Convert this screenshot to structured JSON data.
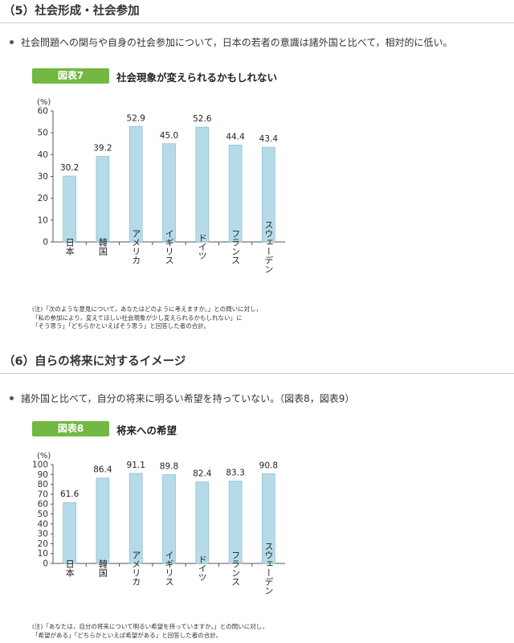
{
  "section5": {
    "heading": "（5）社会形成・社会参加",
    "bullet": "社会問題への関与や自身の社会参加について，日本の若者の意識は諸外国と比べて，相対的に低い。",
    "figure_label": "図表7",
    "figure_title": "社会現象が変えられるかもしれない",
    "note_lines": [
      "(注)「次のような意見について，あなたはどのように考えますか。」との問いに対し，",
      "「私の参加により，変えてほしい社会現象が少し変えられるかもしれない」に",
      "「そう思う」「どちらかといえばそう思う」と回答した者の合計。"
    ]
  },
  "section6": {
    "heading": "（6）自らの将来に対するイメージ",
    "bullet": "諸外国と比べて，自分の将来に明るい希望を持っていない。（図表8，図表9）",
    "figure_label": "図表8",
    "figure_title": "将来への希望",
    "note_lines": [
      "(注)「あなたは，自分の将来について明るい希望を持っていますか。」との問いに対し，",
      "「希望がある」「どちらかといえば希望がある」と回答した者の合計。"
    ]
  },
  "chart_data": [
    {
      "type": "bar",
      "title": "社会現象が変えられるかもしれない",
      "ylabel": "(%)",
      "categories": [
        "日本",
        "韓国",
        "アメリカ",
        "イギリス",
        "ドイツ",
        "フランス",
        "スウェーデン"
      ],
      "values": [
        30.2,
        39.2,
        52.9,
        45.0,
        52.6,
        44.4,
        43.4
      ],
      "value_labels": [
        "30.2",
        "39.2",
        "52.9",
        "45.0",
        "52.6",
        "44.4",
        "43.4"
      ],
      "ylim": [
        0,
        60
      ],
      "yticks": [
        0,
        10,
        20,
        30,
        40,
        50,
        60
      ],
      "grid": false,
      "bar_color": "#b5dbe8"
    },
    {
      "type": "bar",
      "title": "将来への希望",
      "ylabel": "(%)",
      "categories": [
        "日本",
        "韓国",
        "アメリカ",
        "イギリス",
        "ドイツ",
        "フランス",
        "スウェーデン"
      ],
      "values": [
        61.6,
        86.4,
        91.1,
        89.8,
        82.4,
        83.3,
        90.8
      ],
      "value_labels": [
        "61.6",
        "86.4",
        "91.1",
        "89.8",
        "82.4",
        "83.3",
        "90.8"
      ],
      "ylim": [
        0,
        100
      ],
      "yticks": [
        0,
        10,
        20,
        30,
        40,
        50,
        60,
        70,
        80,
        90,
        100
      ],
      "grid": false,
      "bar_color": "#b5dbe8"
    }
  ]
}
